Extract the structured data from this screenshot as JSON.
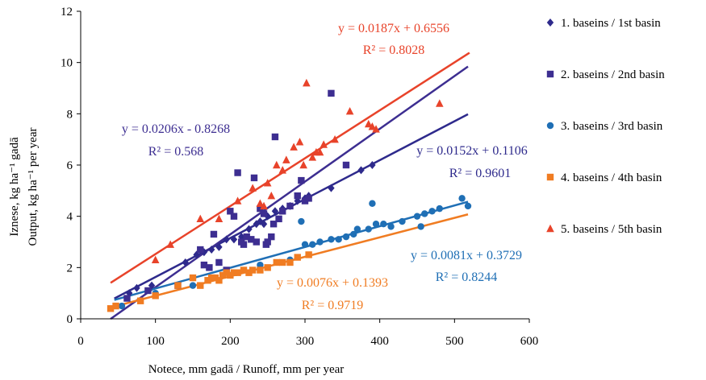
{
  "chart_data": {
    "type": "scatter",
    "xlabel": "Notece, mm gadā / Runoff, mm per year",
    "ylabel_lines": [
      "Iznese, kg ha⁻¹ gadā",
      "Output, kg ha⁻¹ per year"
    ],
    "xlim": [
      0,
      600
    ],
    "ylim": [
      0,
      12
    ],
    "xticks": [
      0,
      100,
      200,
      300,
      400,
      500,
      600
    ],
    "yticks": [
      0,
      2,
      4,
      6,
      8,
      10,
      12
    ],
    "grid": false,
    "legend_position": "right",
    "series": [
      {
        "name": "1. baseins / 1st basin",
        "marker": "diamond",
        "color": "#2e2a8c",
        "trendline": {
          "slope": 0.0152,
          "intercept": 0.1106,
          "x_range": [
            45,
            518
          ],
          "equation": "y = 0.0152x + 0.1106",
          "r2": "R² = 0.9601"
        },
        "points": [
          [
            65,
            1.0
          ],
          [
            75,
            1.2
          ],
          [
            95,
            1.3
          ],
          [
            140,
            2.2
          ],
          [
            155,
            2.5
          ],
          [
            165,
            2.6
          ],
          [
            175,
            2.7
          ],
          [
            185,
            2.8
          ],
          [
            195,
            3.1
          ],
          [
            205,
            3.1
          ],
          [
            215,
            3.2
          ],
          [
            225,
            3.5
          ],
          [
            235,
            3.7
          ],
          [
            240,
            3.8
          ],
          [
            245,
            3.7
          ],
          [
            250,
            4.0
          ],
          [
            260,
            4.2
          ],
          [
            270,
            4.3
          ],
          [
            280,
            4.4
          ],
          [
            290,
            4.6
          ],
          [
            300,
            4.7
          ],
          [
            305,
            4.8
          ],
          [
            335,
            5.1
          ],
          [
            375,
            5.8
          ],
          [
            390,
            6.0
          ]
        ]
      },
      {
        "name": "2. baseins / 2nd basin",
        "marker": "square",
        "color": "#3d2e91",
        "trendline": {
          "slope": 0.0206,
          "intercept": -0.8268,
          "x_range": [
            40,
            518
          ],
          "equation": "y = 0.0206x - 0.8268",
          "r2": "R² = 0.568"
        },
        "points": [
          [
            62,
            0.8
          ],
          [
            90,
            1.1
          ],
          [
            130,
            1.3
          ],
          [
            160,
            2.7
          ],
          [
            165,
            2.1
          ],
          [
            172,
            2.0
          ],
          [
            178,
            3.3
          ],
          [
            185,
            2.2
          ],
          [
            195,
            1.9
          ],
          [
            200,
            4.2
          ],
          [
            205,
            4.0
          ],
          [
            210,
            5.7
          ],
          [
            215,
            3.0
          ],
          [
            218,
            2.9
          ],
          [
            222,
            3.2
          ],
          [
            228,
            3.1
          ],
          [
            232,
            5.5
          ],
          [
            235,
            3.0
          ],
          [
            240,
            4.3
          ],
          [
            245,
            4.1
          ],
          [
            248,
            2.9
          ],
          [
            250,
            3.0
          ],
          [
            255,
            3.2
          ],
          [
            258,
            3.7
          ],
          [
            260,
            7.1
          ],
          [
            265,
            3.9
          ],
          [
            270,
            4.2
          ],
          [
            280,
            4.4
          ],
          [
            290,
            4.8
          ],
          [
            295,
            5.4
          ],
          [
            300,
            4.6
          ],
          [
            305,
            4.7
          ],
          [
            335,
            8.8
          ],
          [
            355,
            6.0
          ]
        ]
      },
      {
        "name": "3. baseins / 3rd basin",
        "marker": "circle",
        "color": "#1f6fb5",
        "trendline": {
          "slope": 0.0081,
          "intercept": 0.3729,
          "x_range": [
            45,
            518
          ],
          "equation": "y = 0.0081x + 0.3729",
          "r2": "R² = 0.8244"
        },
        "points": [
          [
            55,
            0.5
          ],
          [
            100,
            1.0
          ],
          [
            150,
            1.3
          ],
          [
            200,
            1.7
          ],
          [
            240,
            2.1
          ],
          [
            280,
            2.3
          ],
          [
            295,
            3.8
          ],
          [
            300,
            2.9
          ],
          [
            310,
            2.9
          ],
          [
            320,
            3.0
          ],
          [
            335,
            3.1
          ],
          [
            345,
            3.1
          ],
          [
            355,
            3.2
          ],
          [
            365,
            3.3
          ],
          [
            370,
            3.5
          ],
          [
            385,
            3.5
          ],
          [
            390,
            4.5
          ],
          [
            395,
            3.7
          ],
          [
            405,
            3.7
          ],
          [
            415,
            3.6
          ],
          [
            430,
            3.8
          ],
          [
            450,
            4.0
          ],
          [
            455,
            3.6
          ],
          [
            460,
            4.1
          ],
          [
            470,
            4.2
          ],
          [
            480,
            4.3
          ],
          [
            510,
            4.7
          ],
          [
            518,
            4.4
          ]
        ]
      },
      {
        "name": "4. baseins / 4th basin",
        "marker": "square",
        "color": "#f07c22",
        "trendline": {
          "slope": 0.0076,
          "intercept": 0.1393,
          "x_range": [
            38,
            518
          ],
          "equation": "y = 0.0076x + 0.1393",
          "r2": "R² = 0.9719"
        },
        "points": [
          [
            40,
            0.4
          ],
          [
            47,
            0.5
          ],
          [
            80,
            0.7
          ],
          [
            100,
            0.9
          ],
          [
            130,
            1.3
          ],
          [
            150,
            1.6
          ],
          [
            160,
            1.3
          ],
          [
            170,
            1.5
          ],
          [
            175,
            1.6
          ],
          [
            180,
            1.6
          ],
          [
            185,
            1.5
          ],
          [
            190,
            1.7
          ],
          [
            195,
            1.8
          ],
          [
            200,
            1.7
          ],
          [
            205,
            1.8
          ],
          [
            210,
            1.8
          ],
          [
            218,
            1.9
          ],
          [
            225,
            1.8
          ],
          [
            230,
            1.9
          ],
          [
            240,
            1.9
          ],
          [
            250,
            2.0
          ],
          [
            262,
            2.2
          ],
          [
            270,
            2.2
          ],
          [
            280,
            2.2
          ],
          [
            290,
            2.4
          ],
          [
            305,
            2.5
          ]
        ]
      },
      {
        "name": "5. baseins / 5th basin",
        "marker": "triangle",
        "color": "#e8432a",
        "trendline": {
          "slope": 0.0187,
          "intercept": 0.6556,
          "x_range": [
            40,
            520
          ],
          "equation": "y = 0.0187x + 0.6556",
          "r2": "R² = 0.8028"
        },
        "points": [
          [
            100,
            2.3
          ],
          [
            120,
            2.9
          ],
          [
            160,
            3.9
          ],
          [
            185,
            3.9
          ],
          [
            210,
            4.6
          ],
          [
            230,
            5.1
          ],
          [
            240,
            4.5
          ],
          [
            245,
            4.4
          ],
          [
            250,
            5.3
          ],
          [
            255,
            4.8
          ],
          [
            262,
            6.0
          ],
          [
            270,
            5.8
          ],
          [
            275,
            6.2
          ],
          [
            285,
            6.7
          ],
          [
            293,
            6.9
          ],
          [
            298,
            6.0
          ],
          [
            302,
            9.2
          ],
          [
            310,
            6.3
          ],
          [
            315,
            6.5
          ],
          [
            320,
            6.5
          ],
          [
            325,
            6.8
          ],
          [
            340,
            7.0
          ],
          [
            360,
            8.1
          ],
          [
            385,
            7.6
          ],
          [
            390,
            7.5
          ],
          [
            395,
            7.4
          ],
          [
            480,
            8.4
          ]
        ]
      }
    ]
  },
  "colors": {
    "axis": "#000000"
  }
}
